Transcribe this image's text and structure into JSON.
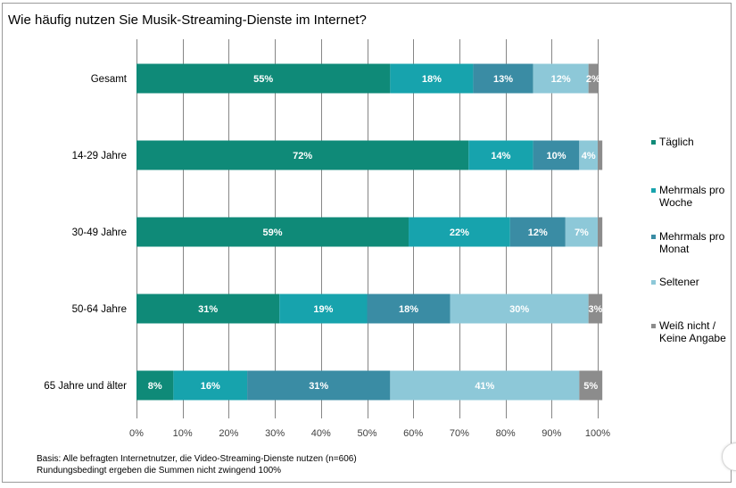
{
  "chart_data": {
    "type": "bar",
    "orientation": "horizontal",
    "stacked": true,
    "title": "Wie häufig nutzen Sie Musik-Streaming-Dienste im Internet?",
    "categories": [
      "Gesamt",
      "14-29 Jahre",
      "30-49 Jahre",
      "50-64 Jahre",
      "65 Jahre und älter"
    ],
    "series": [
      {
        "name": "Täglich",
        "color": "#0f8a78",
        "values": [
          55,
          72,
          59,
          31,
          8
        ],
        "labels": [
          "55%",
          "72%",
          "59%",
          "31%",
          "8%"
        ]
      },
      {
        "name": "Mehrmals pro Woche",
        "color": "#17a3ad",
        "values": [
          18,
          14,
          22,
          19,
          16
        ],
        "labels": [
          "18%",
          "14%",
          "22%",
          "19%",
          "16%"
        ]
      },
      {
        "name": "Mehrmals pro Monat",
        "color": "#3a8ca4",
        "values": [
          13,
          10,
          12,
          18,
          31
        ],
        "labels": [
          "13%",
          "10%",
          "12%",
          "18%",
          "31%"
        ]
      },
      {
        "name": "Seltener",
        "color": "#8dc8d8",
        "values": [
          12,
          4,
          7,
          30,
          41
        ],
        "labels": [
          "12%",
          "4%",
          "7%",
          "30%",
          "41%"
        ]
      },
      {
        "name": "Weiß nicht / Keine Angabe",
        "color": "#8c8c8c",
        "values": [
          2,
          1,
          1,
          3,
          5
        ],
        "labels": [
          "2%",
          "",
          "",
          "3%",
          "5%"
        ]
      }
    ],
    "legend": [
      {
        "lines": [
          "Täglich"
        ],
        "color": "#0f8a78"
      },
      {
        "lines": [
          "Mehrmals pro",
          "Woche"
        ],
        "color": "#17a3ad"
      },
      {
        "lines": [
          "Mehrmals pro",
          "Monat"
        ],
        "color": "#3a8ca4"
      },
      {
        "lines": [
          "Seltener"
        ],
        "color": "#8dc8d8"
      },
      {
        "lines": [
          "Weiß nicht /",
          "Keine Angabe"
        ],
        "color": "#8c8c8c"
      }
    ],
    "xlim": [
      0,
      100
    ],
    "x_ticks": [
      "0%",
      "10%",
      "20%",
      "30%",
      "40%",
      "50%",
      "60%",
      "70%",
      "80%",
      "90%",
      "100%"
    ],
    "grid": true,
    "legend_position": "right"
  },
  "footnote": {
    "line1": "Basis: Alle befragten Internetnutzer, die Video-Streaming-Dienste nutzen (n=606)",
    "line2": "Rundungsbedingt ergeben die Summen nicht zwingend 100%"
  }
}
